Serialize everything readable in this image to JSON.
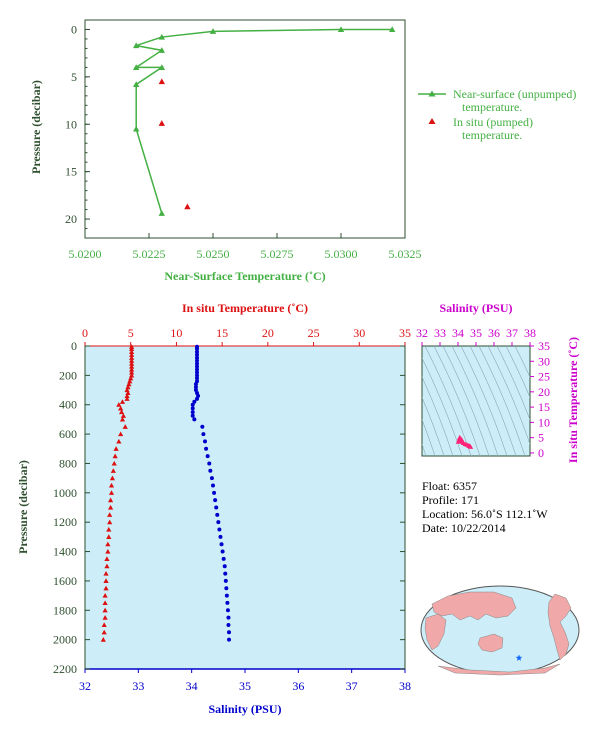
{
  "colors": {
    "green": "#44b044",
    "red": "#dd1111",
    "blue": "#0000cc",
    "magenta": "#cc00cc",
    "axis_dark": "#2f4f2f",
    "panel_bg": "#cdeef8",
    "profile_marker": "#ff2277",
    "map_land": "#f0a8a8",
    "map_ocean": "#cdeef8",
    "float_star": "#1166ff"
  },
  "icons": {
    "legend_line_marker": "triangle",
    "float_location": "star"
  },
  "chart_data": [
    {
      "id": "near_surface",
      "type": "line",
      "xlabel": "Near-Surface Temperature (˚C)",
      "ylabel": "Pressure (decibar)",
      "xlim": [
        5.02,
        5.0325
      ],
      "ylim": [
        22,
        -1
      ],
      "xticks": [
        "5.0200",
        "5.0225",
        "5.0250",
        "5.0275",
        "5.0300",
        "5.0325"
      ],
      "yticks": [
        "0",
        "5",
        "10",
        "15",
        "20"
      ],
      "legend_position": "right",
      "series": [
        {
          "name": "Near-surface (unpumped) temperature.",
          "marker": "line-triangle",
          "color": "#44b044",
          "points": [
            [
              5.032,
              0
            ],
            [
              5.03,
              0
            ],
            [
              5.025,
              0.2
            ],
            [
              5.023,
              0.8
            ],
            [
              5.022,
              1.7
            ],
            [
              5.023,
              2.2
            ],
            [
              5.022,
              4
            ],
            [
              5.023,
              4
            ],
            [
              5.022,
              5.8
            ],
            [
              5.022,
              10.5
            ],
            [
              5.023,
              19.4
            ]
          ]
        },
        {
          "name": "In situ (pumped) temperature.",
          "marker": "triangle",
          "color": "#dd1111",
          "points": [
            [
              5.023,
              5.5
            ],
            [
              5.023,
              9.9
            ],
            [
              5.024,
              18.7
            ]
          ]
        }
      ]
    },
    {
      "id": "profile",
      "type": "scatter",
      "ylabel": "Pressure (decibar)",
      "top_xlabel": "In situ Temperature (˚C)",
      "bottom_xlabel": "Salinity (PSU)",
      "temperature_xlim": [
        0,
        35
      ],
      "salinity_xlim": [
        32,
        38
      ],
      "ylim": [
        2200,
        0
      ],
      "temperature_ticks": [
        "0",
        "5",
        "10",
        "15",
        "20",
        "25",
        "30",
        "35"
      ],
      "salinity_ticks": [
        "32",
        "33",
        "34",
        "35",
        "36",
        "37",
        "38"
      ],
      "pressure_ticks": [
        "0",
        "200",
        "400",
        "600",
        "800",
        "1000",
        "1200",
        "1400",
        "1600",
        "1800",
        "2000",
        "2200"
      ],
      "temperature": [
        [
          5.1,
          5
        ],
        [
          5.1,
          20
        ],
        [
          5.1,
          40
        ],
        [
          5.1,
          60
        ],
        [
          5.1,
          80
        ],
        [
          5.1,
          100
        ],
        [
          5.1,
          120
        ],
        [
          5.1,
          140
        ],
        [
          5.1,
          160
        ],
        [
          5.1,
          180
        ],
        [
          5.1,
          200
        ],
        [
          5.0,
          220
        ],
        [
          4.9,
          240
        ],
        [
          4.8,
          260
        ],
        [
          4.7,
          280
        ],
        [
          4.6,
          300
        ],
        [
          4.7,
          320
        ],
        [
          4.6,
          340
        ],
        [
          4.6,
          360
        ],
        [
          4.1,
          380
        ],
        [
          3.7,
          400
        ],
        [
          3.9,
          425
        ],
        [
          4.0,
          450
        ],
        [
          4.2,
          475
        ],
        [
          4.1,
          500
        ],
        [
          4.4,
          550
        ],
        [
          3.9,
          600
        ],
        [
          3.7,
          650
        ],
        [
          3.4,
          700
        ],
        [
          3.3,
          750
        ],
        [
          3.2,
          800
        ],
        [
          3.1,
          850
        ],
        [
          3.0,
          900
        ],
        [
          2.9,
          950
        ],
        [
          2.9,
          1000
        ],
        [
          2.8,
          1050
        ],
        [
          2.8,
          1100
        ],
        [
          2.7,
          1150
        ],
        [
          2.7,
          1200
        ],
        [
          2.6,
          1250
        ],
        [
          2.6,
          1300
        ],
        [
          2.5,
          1350
        ],
        [
          2.5,
          1400
        ],
        [
          2.4,
          1450
        ],
        [
          2.4,
          1500
        ],
        [
          2.3,
          1550
        ],
        [
          2.3,
          1600
        ],
        [
          2.3,
          1650
        ],
        [
          2.2,
          1700
        ],
        [
          2.2,
          1750
        ],
        [
          2.2,
          1800
        ],
        [
          2.2,
          1850
        ],
        [
          2.1,
          1900
        ],
        [
          2.1,
          1950
        ],
        [
          2.0,
          2000
        ]
      ],
      "salinity": [
        [
          34.1,
          5
        ],
        [
          34.1,
          20
        ],
        [
          34.1,
          40
        ],
        [
          34.1,
          60
        ],
        [
          34.1,
          80
        ],
        [
          34.1,
          100
        ],
        [
          34.1,
          120
        ],
        [
          34.1,
          140
        ],
        [
          34.1,
          160
        ],
        [
          34.1,
          180
        ],
        [
          34.1,
          200
        ],
        [
          34.1,
          220
        ],
        [
          34.1,
          240
        ],
        [
          34.08,
          260
        ],
        [
          34.08,
          280
        ],
        [
          34.08,
          300
        ],
        [
          34.1,
          320
        ],
        [
          34.12,
          340
        ],
        [
          34.1,
          360
        ],
        [
          34.05,
          380
        ],
        [
          34.02,
          400
        ],
        [
          34.02,
          425
        ],
        [
          34.02,
          450
        ],
        [
          34.02,
          475
        ],
        [
          34.05,
          500
        ],
        [
          34.2,
          550
        ],
        [
          34.22,
          600
        ],
        [
          34.25,
          650
        ],
        [
          34.27,
          700
        ],
        [
          34.3,
          750
        ],
        [
          34.33,
          800
        ],
        [
          34.35,
          850
        ],
        [
          34.38,
          900
        ],
        [
          34.4,
          950
        ],
        [
          34.42,
          1000
        ],
        [
          34.44,
          1050
        ],
        [
          34.46,
          1100
        ],
        [
          34.48,
          1150
        ],
        [
          34.5,
          1200
        ],
        [
          34.52,
          1250
        ],
        [
          34.54,
          1300
        ],
        [
          34.56,
          1350
        ],
        [
          34.58,
          1400
        ],
        [
          34.6,
          1450
        ],
        [
          34.62,
          1500
        ],
        [
          34.63,
          1550
        ],
        [
          34.64,
          1600
        ],
        [
          34.65,
          1650
        ],
        [
          34.66,
          1700
        ],
        [
          34.67,
          1750
        ],
        [
          34.68,
          1800
        ],
        [
          34.69,
          1850
        ],
        [
          34.69,
          1900
        ],
        [
          34.7,
          1950
        ],
        [
          34.7,
          2000
        ]
      ]
    },
    {
      "id": "ts_diagram",
      "type": "scatter",
      "top_xlabel": "Salinity (PSU)",
      "right_ylabel": "In situ Temperature (˚C)",
      "xlim": [
        32,
        38
      ],
      "ylim": [
        -1,
        35
      ],
      "xticks": [
        "32",
        "33",
        "34",
        "35",
        "36",
        "37",
        "38"
      ],
      "yticks": [
        "0",
        "5",
        "10",
        "15",
        "20",
        "25",
        "30",
        "35"
      ],
      "points": [
        [
          34.1,
          5.1
        ],
        [
          34.08,
          4.8
        ],
        [
          34.12,
          4.6
        ],
        [
          34.02,
          3.7
        ],
        [
          34.05,
          4.1
        ],
        [
          34.2,
          4.4
        ],
        [
          34.25,
          3.7
        ],
        [
          34.3,
          3.3
        ],
        [
          34.4,
          2.9
        ],
        [
          34.5,
          2.7
        ],
        [
          34.6,
          2.4
        ],
        [
          34.65,
          2.3
        ],
        [
          34.7,
          2.0
        ]
      ]
    }
  ],
  "float_info": {
    "float": "Float:  6357",
    "profile": "Profile:  171",
    "location": "Location:  56.0˚S  112.1˚W",
    "date": "Date:  10/22/2014"
  }
}
